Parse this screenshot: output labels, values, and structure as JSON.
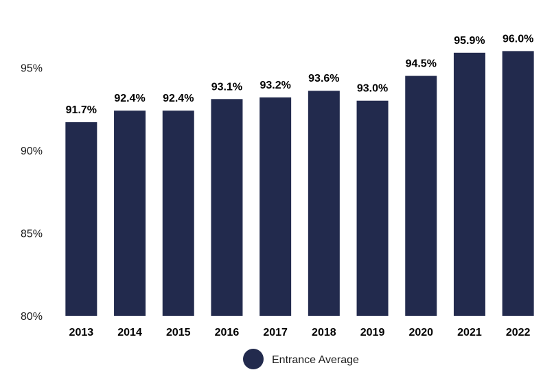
{
  "chart_data": {
    "type": "bar",
    "categories": [
      "2013",
      "2014",
      "2015",
      "2016",
      "2017",
      "2018",
      "2019",
      "2020",
      "2021",
      "2022"
    ],
    "series": [
      {
        "name": "Entrance Average",
        "values": [
          91.7,
          92.4,
          92.4,
          93.1,
          93.2,
          93.6,
          93.0,
          94.5,
          95.9,
          96.0
        ]
      }
    ],
    "data_labels": [
      "91.7%",
      "92.4%",
      "92.4%",
      "93.1%",
      "93.2%",
      "93.6%",
      "93.0%",
      "94.5%",
      "95.9%",
      "96.0%"
    ],
    "yticks": [
      80,
      85,
      90,
      95
    ],
    "ytick_labels": [
      "80%",
      "85%",
      "90%",
      "95%"
    ],
    "ylim": [
      80,
      97
    ],
    "grid": false,
    "legend_position": "bottom-center",
    "bar_color": "#222a4d"
  }
}
